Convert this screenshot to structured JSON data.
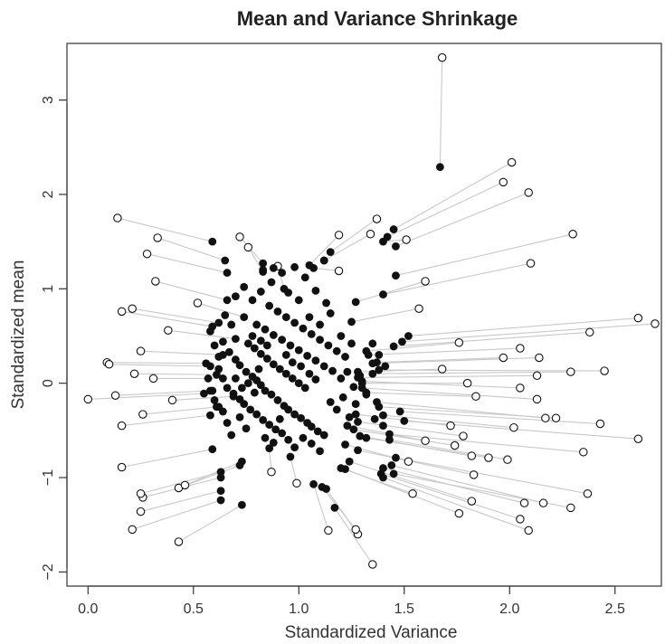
{
  "chart_data": {
    "type": "scatter",
    "title": "Mean and Variance Shrinkage",
    "xlabel": "Standardized Variance",
    "ylabel": "Standardized mean",
    "xlim": [
      -0.1,
      2.72
    ],
    "ylim": [
      -2.15,
      3.6
    ],
    "x_ticks": [
      0.0,
      0.5,
      1.0,
      1.5,
      2.0,
      2.5
    ],
    "x_tick_labels": [
      "0.0",
      "0.5",
      "1.0",
      "1.5",
      "2.0",
      "2.5"
    ],
    "y_ticks": [
      -2,
      -1,
      0,
      1,
      2,
      3
    ],
    "y_tick_labels": [
      "−2",
      "−1",
      "0",
      "1",
      "2",
      "3"
    ],
    "grid": false,
    "marker_styles": {
      "original": "open circle",
      "shrunken": "filled circle",
      "connector": "light gray line"
    },
    "colors": {
      "filled_point": "#111111",
      "open_point_stroke": "#111111",
      "connector": "#c8c8c8",
      "axis": "#333333"
    },
    "pairs": [
      {
        "orig": [
          1.68,
          3.45
        ],
        "shrunk": [
          1.67,
          2.29
        ]
      },
      {
        "orig": [
          2.01,
          2.34
        ],
        "shrunk": [
          1.45,
          1.63
        ]
      },
      {
        "orig": [
          1.97,
          2.13
        ],
        "shrunk": [
          1.42,
          1.55
        ]
      },
      {
        "orig": [
          2.09,
          2.02
        ],
        "shrunk": [
          1.46,
          1.45
        ]
      },
      {
        "orig": [
          2.3,
          1.58
        ],
        "shrunk": [
          1.46,
          1.14
        ]
      },
      {
        "orig": [
          2.1,
          1.27
        ],
        "shrunk": [
          1.4,
          0.94
        ]
      },
      {
        "orig": [
          2.61,
          0.69
        ],
        "shrunk": [
          1.52,
          0.5
        ]
      },
      {
        "orig": [
          2.69,
          0.63
        ],
        "shrunk": [
          1.49,
          0.44
        ]
      },
      {
        "orig": [
          2.38,
          0.54
        ],
        "shrunk": [
          1.45,
          0.39
        ]
      },
      {
        "orig": [
          2.05,
          0.37
        ],
        "shrunk": [
          1.33,
          0.3
        ]
      },
      {
        "orig": [
          2.14,
          0.27
        ],
        "shrunk": [
          1.35,
          0.21
        ]
      },
      {
        "orig": [
          2.45,
          0.13
        ],
        "shrunk": [
          1.38,
          0.14
        ]
      },
      {
        "orig": [
          2.29,
          0.12
        ],
        "shrunk": [
          1.35,
          0.1
        ]
      },
      {
        "orig": [
          2.13,
          0.08
        ],
        "shrunk": [
          1.28,
          0.06
        ]
      },
      {
        "orig": [
          2.05,
          -0.05
        ],
        "shrunk": [
          1.3,
          0.02
        ]
      },
      {
        "orig": [
          2.13,
          -0.17
        ],
        "shrunk": [
          1.3,
          -0.05
        ]
      },
      {
        "orig": [
          2.17,
          -0.37
        ],
        "shrunk": [
          1.37,
          -0.2
        ]
      },
      {
        "orig": [
          2.22,
          -0.37
        ],
        "shrunk": [
          1.38,
          -0.25
        ]
      },
      {
        "orig": [
          2.43,
          -0.43
        ],
        "shrunk": [
          1.48,
          -0.3
        ]
      },
      {
        "orig": [
          2.02,
          -0.47
        ],
        "shrunk": [
          1.4,
          -0.34
        ]
      },
      {
        "orig": [
          2.61,
          -0.59
        ],
        "shrunk": [
          1.5,
          -0.4
        ]
      },
      {
        "orig": [
          2.35,
          -0.73
        ],
        "shrunk": [
          1.43,
          -0.54
        ]
      },
      {
        "orig": [
          1.99,
          -0.81
        ],
        "shrunk": [
          1.43,
          -0.6
        ]
      },
      {
        "orig": [
          2.37,
          -1.17
        ],
        "shrunk": [
          1.46,
          -0.79
        ]
      },
      {
        "orig": [
          2.16,
          -1.27
        ],
        "shrunk": [
          1.44,
          -0.87
        ]
      },
      {
        "orig": [
          2.07,
          -1.27
        ],
        "shrunk": [
          1.4,
          -0.9
        ]
      },
      {
        "orig": [
          2.29,
          -1.32
        ],
        "shrunk": [
          1.45,
          -0.96
        ]
      },
      {
        "orig": [
          2.05,
          -1.44
        ],
        "shrunk": [
          1.39,
          -0.96
        ]
      },
      {
        "orig": [
          2.09,
          -1.56
        ],
        "shrunk": [
          1.4,
          -1.0
        ]
      },
      {
        "orig": [
          1.82,
          -1.25
        ],
        "shrunk": [
          1.24,
          -0.83
        ]
      },
      {
        "orig": [
          1.76,
          -1.38
        ],
        "shrunk": [
          1.22,
          -0.91
        ]
      },
      {
        "orig": [
          1.54,
          -1.17
        ],
        "shrunk": [
          1.2,
          -0.9
        ]
      },
      {
        "orig": [
          1.35,
          -1.92
        ],
        "shrunk": [
          1.17,
          -1.32
        ]
      },
      {
        "orig": [
          1.28,
          -1.6
        ],
        "shrunk": [
          1.13,
          -1.12
        ]
      },
      {
        "orig": [
          1.27,
          -1.55
        ],
        "shrunk": [
          1.11,
          -1.1
        ]
      },
      {
        "orig": [
          1.14,
          -1.56
        ],
        "shrunk": [
          1.07,
          -1.07
        ]
      },
      {
        "orig": [
          0.43,
          -1.68
        ],
        "shrunk": [
          0.73,
          -1.29
        ]
      },
      {
        "orig": [
          0.21,
          -1.55
        ],
        "shrunk": [
          0.63,
          -1.24
        ]
      },
      {
        "orig": [
          0.25,
          -1.36
        ],
        "shrunk": [
          0.63,
          -1.14
        ]
      },
      {
        "orig": [
          0.26,
          -1.21
        ],
        "shrunk": [
          0.63,
          -1.0
        ]
      },
      {
        "orig": [
          0.25,
          -1.17
        ],
        "shrunk": [
          0.63,
          -0.94
        ]
      },
      {
        "orig": [
          0.43,
          -1.11
        ],
        "shrunk": [
          0.72,
          -0.87
        ]
      },
      {
        "orig": [
          0.46,
          -1.08
        ],
        "shrunk": [
          0.73,
          -0.83
        ]
      },
      {
        "orig": [
          0.16,
          -0.89
        ],
        "shrunk": [
          0.59,
          -0.7
        ]
      },
      {
        "orig": [
          0.0,
          -0.17
        ],
        "shrunk": [
          0.55,
          -0.11
        ]
      },
      {
        "orig": [
          0.13,
          -0.13
        ],
        "shrunk": [
          0.58,
          -0.08
        ]
      },
      {
        "orig": [
          0.09,
          0.22
        ],
        "shrunk": [
          0.56,
          0.21
        ]
      },
      {
        "orig": [
          0.1,
          0.2
        ],
        "shrunk": [
          0.58,
          0.18
        ]
      },
      {
        "orig": [
          0.22,
          0.1
        ],
        "shrunk": [
          0.61,
          0.09
        ]
      },
      {
        "orig": [
          0.31,
          0.05
        ],
        "shrunk": [
          0.64,
          0.05
        ]
      },
      {
        "orig": [
          0.25,
          0.34
        ],
        "shrunk": [
          0.64,
          0.3
        ]
      },
      {
        "orig": [
          0.16,
          0.76
        ],
        "shrunk": [
          0.59,
          0.6
        ]
      },
      {
        "orig": [
          0.21,
          0.79
        ],
        "shrunk": [
          0.62,
          0.64
        ]
      },
      {
        "orig": [
          0.32,
          1.08
        ],
        "shrunk": [
          0.66,
          0.88
        ]
      },
      {
        "orig": [
          0.14,
          1.75
        ],
        "shrunk": [
          0.59,
          1.5
        ]
      },
      {
        "orig": [
          0.33,
          1.54
        ],
        "shrunk": [
          0.65,
          1.3
        ]
      },
      {
        "orig": [
          0.28,
          1.37
        ],
        "shrunk": [
          0.66,
          1.17
        ]
      },
      {
        "orig": [
          0.72,
          1.55
        ],
        "shrunk": [
          0.83,
          1.27
        ]
      },
      {
        "orig": [
          0.76,
          1.44
        ],
        "shrunk": [
          0.83,
          1.18
        ]
      },
      {
        "orig": [
          0.9,
          1.24
        ],
        "shrunk": [
          0.93,
          1.0
        ]
      },
      {
        "orig": [
          1.19,
          1.57
        ],
        "shrunk": [
          1.05,
          1.25
        ]
      },
      {
        "orig": [
          1.37,
          1.74
        ],
        "shrunk": [
          1.15,
          1.39
        ]
      },
      {
        "orig": [
          1.34,
          1.58
        ],
        "shrunk": [
          1.12,
          1.3
        ]
      },
      {
        "orig": [
          1.51,
          1.52
        ],
        "shrunk": [
          1.4,
          1.5
        ]
      },
      {
        "orig": [
          1.6,
          1.08
        ],
        "shrunk": [
          1.27,
          0.86
        ]
      },
      {
        "orig": [
          1.57,
          0.79
        ],
        "shrunk": [
          1.25,
          0.65
        ]
      },
      {
        "orig": [
          1.19,
          1.19
        ],
        "shrunk": [
          1.07,
          1.22
        ]
      },
      {
        "orig": [
          1.76,
          0.43
        ],
        "shrunk": [
          1.32,
          0.34
        ]
      },
      {
        "orig": [
          1.97,
          0.27
        ],
        "shrunk": [
          1.37,
          0.22
        ]
      },
      {
        "orig": [
          1.68,
          0.15
        ],
        "shrunk": [
          1.28,
          0.12
        ]
      },
      {
        "orig": [
          1.8,
          0.0
        ],
        "shrunk": [
          1.3,
          0.0
        ]
      },
      {
        "orig": [
          1.84,
          -0.14
        ],
        "shrunk": [
          1.32,
          -0.1
        ]
      },
      {
        "orig": [
          1.72,
          -0.45
        ],
        "shrunk": [
          1.27,
          -0.33
        ]
      },
      {
        "orig": [
          1.78,
          -0.56
        ],
        "shrunk": [
          1.28,
          -0.41
        ]
      },
      {
        "orig": [
          1.74,
          -0.66
        ],
        "shrunk": [
          1.26,
          -0.49
        ]
      },
      {
        "orig": [
          1.82,
          -0.77
        ],
        "shrunk": [
          1.29,
          -0.56
        ]
      },
      {
        "orig": [
          1.9,
          -0.79
        ],
        "shrunk": [
          1.32,
          -0.58
        ]
      },
      {
        "orig": [
          1.83,
          -0.97
        ],
        "shrunk": [
          1.28,
          -0.71
        ]
      },
      {
        "orig": [
          1.52,
          -0.83
        ],
        "shrunk": [
          1.22,
          -0.65
        ]
      },
      {
        "orig": [
          1.6,
          -0.61
        ],
        "shrunk": [
          1.23,
          -0.45
        ]
      },
      {
        "orig": [
          0.87,
          -0.94
        ],
        "shrunk": [
          0.86,
          -0.69
        ]
      },
      {
        "orig": [
          0.99,
          -1.06
        ],
        "shrunk": [
          0.96,
          -0.78
        ]
      },
      {
        "orig": [
          0.16,
          -0.45
        ],
        "shrunk": [
          0.58,
          -0.34
        ]
      },
      {
        "orig": [
          0.26,
          -0.33
        ],
        "shrunk": [
          0.62,
          -0.25
        ]
      },
      {
        "orig": [
          0.4,
          -0.18
        ],
        "shrunk": [
          0.69,
          -0.14
        ]
      },
      {
        "orig": [
          0.52,
          0.85
        ],
        "shrunk": [
          0.74,
          0.7
        ]
      },
      {
        "orig": [
          0.38,
          0.56
        ],
        "shrunk": [
          0.7,
          0.47
        ]
      }
    ],
    "shrunk_only": [
      [
        0.58,
        0.55
      ],
      [
        0.64,
        0.44
      ],
      [
        0.67,
        0.33
      ],
      [
        0.7,
        0.25
      ],
      [
        0.72,
        0.19
      ],
      [
        0.75,
        0.12
      ],
      [
        0.78,
        0.07
      ],
      [
        0.8,
        0.03
      ],
      [
        0.82,
        -0.02
      ],
      [
        0.84,
        -0.08
      ],
      [
        0.87,
        -0.12
      ],
      [
        0.9,
        -0.18
      ],
      [
        0.93,
        -0.24
      ],
      [
        0.95,
        -0.28
      ],
      [
        0.98,
        -0.33
      ],
      [
        1.01,
        -0.37
      ],
      [
        1.04,
        -0.42
      ],
      [
        1.06,
        -0.46
      ],
      [
        1.09,
        -0.51
      ],
      [
        1.12,
        -0.55
      ],
      [
        0.66,
        -0.05
      ],
      [
        0.69,
        -0.11
      ],
      [
        0.72,
        -0.17
      ],
      [
        0.74,
        -0.22
      ],
      [
        0.77,
        -0.28
      ],
      [
        0.8,
        -0.33
      ],
      [
        0.83,
        -0.39
      ],
      [
        0.86,
        -0.44
      ],
      [
        0.89,
        -0.49
      ],
      [
        0.92,
        -0.53
      ],
      [
        0.76,
        0.42
      ],
      [
        0.79,
        0.37
      ],
      [
        0.82,
        0.31
      ],
      [
        0.85,
        0.26
      ],
      [
        0.88,
        0.2
      ],
      [
        0.91,
        0.15
      ],
      [
        0.94,
        0.1
      ],
      [
        0.97,
        0.05
      ],
      [
        1.0,
        0.0
      ],
      [
        1.03,
        -0.05
      ],
      [
        0.8,
        0.62
      ],
      [
        0.84,
        0.57
      ],
      [
        0.88,
        0.51
      ],
      [
        0.92,
        0.46
      ],
      [
        0.96,
        0.4
      ],
      [
        1.0,
        0.35
      ],
      [
        1.04,
        0.29
      ],
      [
        1.08,
        0.24
      ],
      [
        1.12,
        0.18
      ],
      [
        1.16,
        0.13
      ],
      [
        0.86,
        0.82
      ],
      [
        0.9,
        0.76
      ],
      [
        0.94,
        0.7
      ],
      [
        0.98,
        0.64
      ],
      [
        1.02,
        0.58
      ],
      [
        1.06,
        0.52
      ],
      [
        1.1,
        0.46
      ],
      [
        1.14,
        0.4
      ],
      [
        1.18,
        0.34
      ],
      [
        1.22,
        0.28
      ],
      [
        0.7,
        0.92
      ],
      [
        0.74,
        1.02
      ],
      [
        0.78,
        0.88
      ],
      [
        0.82,
        0.97
      ],
      [
        0.87,
        1.07
      ],
      [
        0.92,
        1.17
      ],
      [
        0.98,
        1.23
      ],
      [
        1.03,
        1.12
      ],
      [
        1.08,
        0.98
      ],
      [
        1.13,
        0.85
      ],
      [
        0.62,
        0.15
      ],
      [
        0.6,
        -0.18
      ],
      [
        0.64,
        -0.3
      ],
      [
        0.66,
        -0.42
      ],
      [
        0.68,
        -0.55
      ],
      [
        0.7,
        0.05
      ],
      [
        0.73,
        -0.05
      ],
      [
        0.76,
        0.0
      ],
      [
        0.79,
        -0.1
      ],
      [
        0.81,
        0.15
      ],
      [
        1.15,
        -0.2
      ],
      [
        1.18,
        -0.28
      ],
      [
        1.21,
        -0.15
      ],
      [
        1.24,
        -0.36
      ],
      [
        1.27,
        -0.22
      ],
      [
        1.2,
        0.05
      ],
      [
        1.23,
        0.12
      ],
      [
        1.26,
        -0.04
      ],
      [
        1.29,
        0.08
      ],
      [
        1.32,
        -0.12
      ],
      [
        0.95,
        -0.6
      ],
      [
        0.98,
        -0.68
      ],
      [
        1.02,
        -0.58
      ],
      [
        1.06,
        -0.64
      ],
      [
        1.1,
        -0.72
      ],
      [
        0.84,
        -0.58
      ],
      [
        0.88,
        -0.63
      ],
      [
        0.91,
        -0.38
      ],
      [
        0.75,
        -0.48
      ],
      [
        0.72,
        -0.36
      ],
      [
        1.05,
        0.7
      ],
      [
        1.1,
        0.62
      ],
      [
        1.15,
        0.74
      ],
      [
        1.2,
        0.5
      ],
      [
        1.25,
        0.42
      ],
      [
        0.94,
        0.3
      ],
      [
        0.97,
        0.22
      ],
      [
        1.01,
        0.18
      ],
      [
        1.05,
        0.1
      ],
      [
        1.08,
        0.04
      ],
      [
        0.78,
        0.5
      ],
      [
        0.82,
        0.45
      ],
      [
        0.85,
        0.4
      ],
      [
        0.68,
        0.62
      ],
      [
        0.65,
        0.72
      ],
      [
        1.35,
        0.42
      ],
      [
        1.38,
        0.3
      ],
      [
        1.41,
        0.18
      ],
      [
        1.36,
        -0.38
      ],
      [
        1.4,
        -0.45
      ],
      [
        0.6,
        0.4
      ],
      [
        0.62,
        0.28
      ],
      [
        0.57,
        0.05
      ],
      [
        0.59,
        -0.08
      ],
      [
        0.61,
        -0.25
      ],
      [
        0.83,
        1.2
      ],
      [
        0.88,
        1.22
      ],
      [
        0.95,
        0.96
      ],
      [
        1.0,
        0.88
      ],
      [
        1.12,
        1.3
      ]
    ]
  }
}
